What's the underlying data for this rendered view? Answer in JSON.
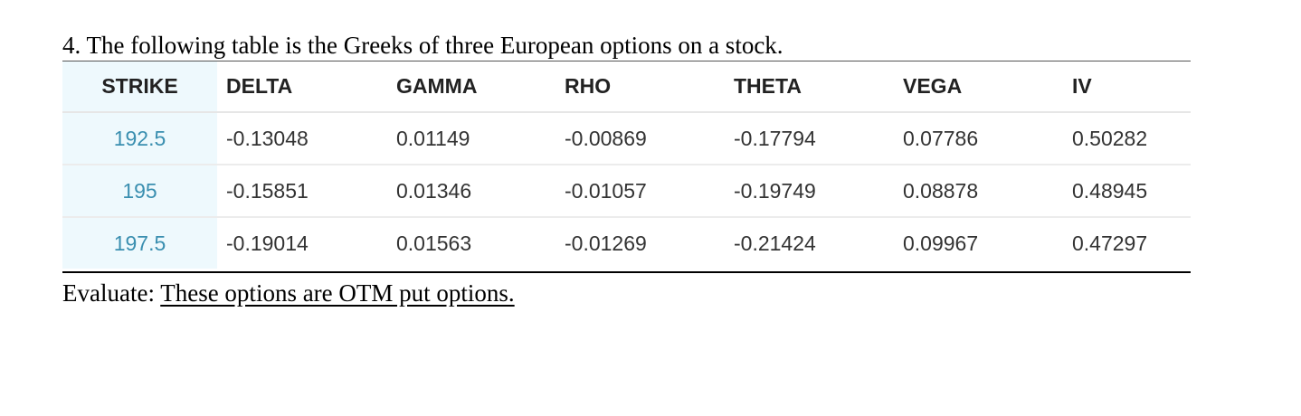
{
  "question": {
    "text": "4. The following table is the Greeks of three European options on a stock."
  },
  "table": {
    "headers": [
      "STRIKE",
      "DELTA",
      "GAMMA",
      "RHO",
      "THETA",
      "VEGA",
      "IV"
    ],
    "rows": [
      [
        "192.5",
        "-0.13048",
        "0.01149",
        "-0.00869",
        "-0.17794",
        "0.07786",
        "0.50282"
      ],
      [
        "195",
        "-0.15851",
        "0.01346",
        "-0.01057",
        "-0.19749",
        "0.08878",
        "0.48945"
      ],
      [
        "197.5",
        "-0.19014",
        "0.01563",
        "-0.01269",
        "-0.21424",
        "0.09967",
        "0.47297"
      ]
    ],
    "colors": {
      "strike_column_background": "#eef9fd",
      "strike_value_text": "#3a8fb0",
      "header_text": "#222222",
      "cell_text": "#333333"
    }
  },
  "evaluate": {
    "label": "Evaluate: ",
    "answer": "These options are OTM put options."
  }
}
